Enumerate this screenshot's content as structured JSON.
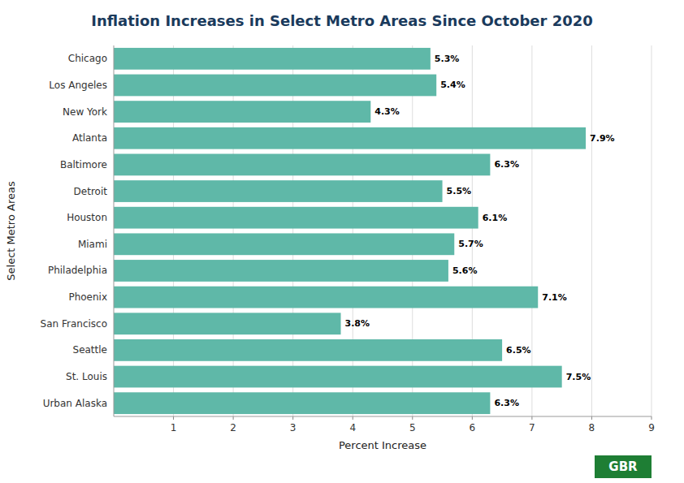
{
  "chart_data": {
    "type": "bar",
    "orientation": "horizontal",
    "title": "Inflation Increases in Select Metro Areas Since October 2020",
    "categories": [
      "Chicago",
      "Los Angeles",
      "New York",
      "Atlanta",
      "Baltimore",
      "Detroit",
      "Houston",
      "Miami",
      "Philadelphia",
      "Phoenix",
      "San Francisco",
      "Seattle",
      "St. Louis",
      "Urban Alaska"
    ],
    "values": [
      5.3,
      5.4,
      4.3,
      7.9,
      6.3,
      5.5,
      6.1,
      5.7,
      5.6,
      7.1,
      3.8,
      6.5,
      7.5,
      6.3
    ],
    "value_labels": [
      "5.3%",
      "5.4%",
      "4.3%",
      "7.9%",
      "6.3%",
      "5.5%",
      "6.1%",
      "5.7%",
      "5.6%",
      "7.1%",
      "3.8%",
      "6.5%",
      "7.5%",
      "6.3%"
    ],
    "data_labels": true,
    "color": "#5fb8a8",
    "xlabel": "Percent Increase",
    "ylabel": "Select Metro Areas",
    "xlim": [
      0,
      9
    ],
    "xticks": [
      1,
      2,
      3,
      4,
      5,
      6,
      7,
      8,
      9
    ],
    "grid": true,
    "annotations": [
      "GBR"
    ]
  }
}
